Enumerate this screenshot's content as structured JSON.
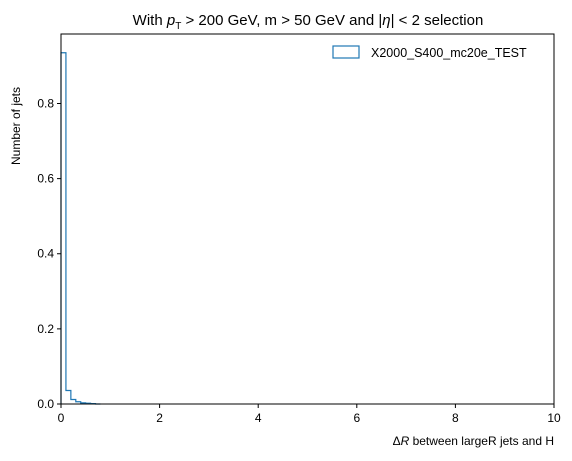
{
  "chart_data": {
    "type": "histogram",
    "title_parts": {
      "pre": "With ",
      "p": "p",
      "sub": "T",
      "mid": " > 200 GeV, m > 50 GeV and |",
      "eta": "η",
      "post": "| < 2 selection"
    },
    "xlabel_parts": {
      "delta": "Δ",
      "r": "R",
      "rest": " between largeR jets and H"
    },
    "ylabel": "Number of jets",
    "xlim": [
      0,
      10
    ],
    "ylim": [
      0,
      0.985
    ],
    "x_ticks": [
      0,
      2,
      4,
      6,
      8,
      10
    ],
    "x_tick_labels": [
      "0",
      "2",
      "4",
      "6",
      "8",
      "10"
    ],
    "y_ticks": [
      0,
      0.2,
      0.4,
      0.6,
      0.8
    ],
    "y_tick_labels": [
      "0.0",
      "0.2",
      "0.4",
      "0.6",
      "0.8"
    ],
    "grid": false,
    "legend_position": "top-right",
    "series": [
      {
        "name": "X2000_S400_mc20e_TEST",
        "color": "#1f77b4",
        "bin_edges": [
          0.0,
          0.1,
          0.2,
          0.3,
          0.4,
          0.5,
          0.6,
          0.7,
          0.8
        ],
        "values": [
          0.935,
          0.036,
          0.012,
          0.006,
          0.003,
          0.002,
          0.001,
          0.0
        ]
      }
    ]
  }
}
